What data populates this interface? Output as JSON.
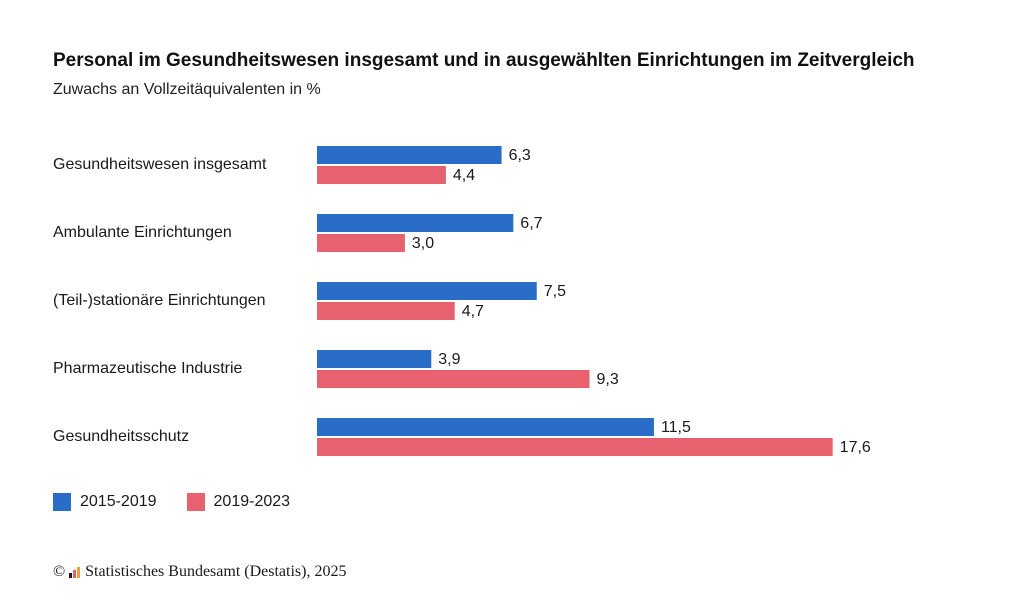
{
  "title": "Personal im Gesundheitswesen insgesamt und in ausgewählten Einrichtungen im Zeitvergleich",
  "subtitle": "Zuwachs an Vollzeitäquivalenten in %",
  "chart_data": {
    "type": "bar",
    "orientation": "horizontal",
    "categories": [
      "Gesundheitswesen insgesamt",
      "Ambulante Einrichtungen",
      "(Teil-)stationäre Einrichtungen",
      "Pharmazeutische Industrie",
      "Gesundheitsschutz"
    ],
    "series": [
      {
        "name": "2015-2019",
        "color": "#2a6dc9",
        "values": [
          6.3,
          6.7,
          7.5,
          3.9,
          11.5
        ],
        "labels": [
          "6,3",
          "6,7",
          "7,5",
          "3,9",
          "11,5"
        ]
      },
      {
        "name": "2019-2023",
        "color": "#e8616f",
        "values": [
          4.4,
          3.0,
          4.7,
          9.3,
          17.6
        ],
        "labels": [
          "4,4",
          "3,0",
          "4,7",
          "9,3",
          "17,6"
        ]
      }
    ],
    "xlim": [
      0,
      17.6
    ],
    "grid": false,
    "legend_position": "bottom-left"
  },
  "source": {
    "copyright": "©",
    "text": "Statistisches Bundesamt (Destatis), 2025"
  }
}
